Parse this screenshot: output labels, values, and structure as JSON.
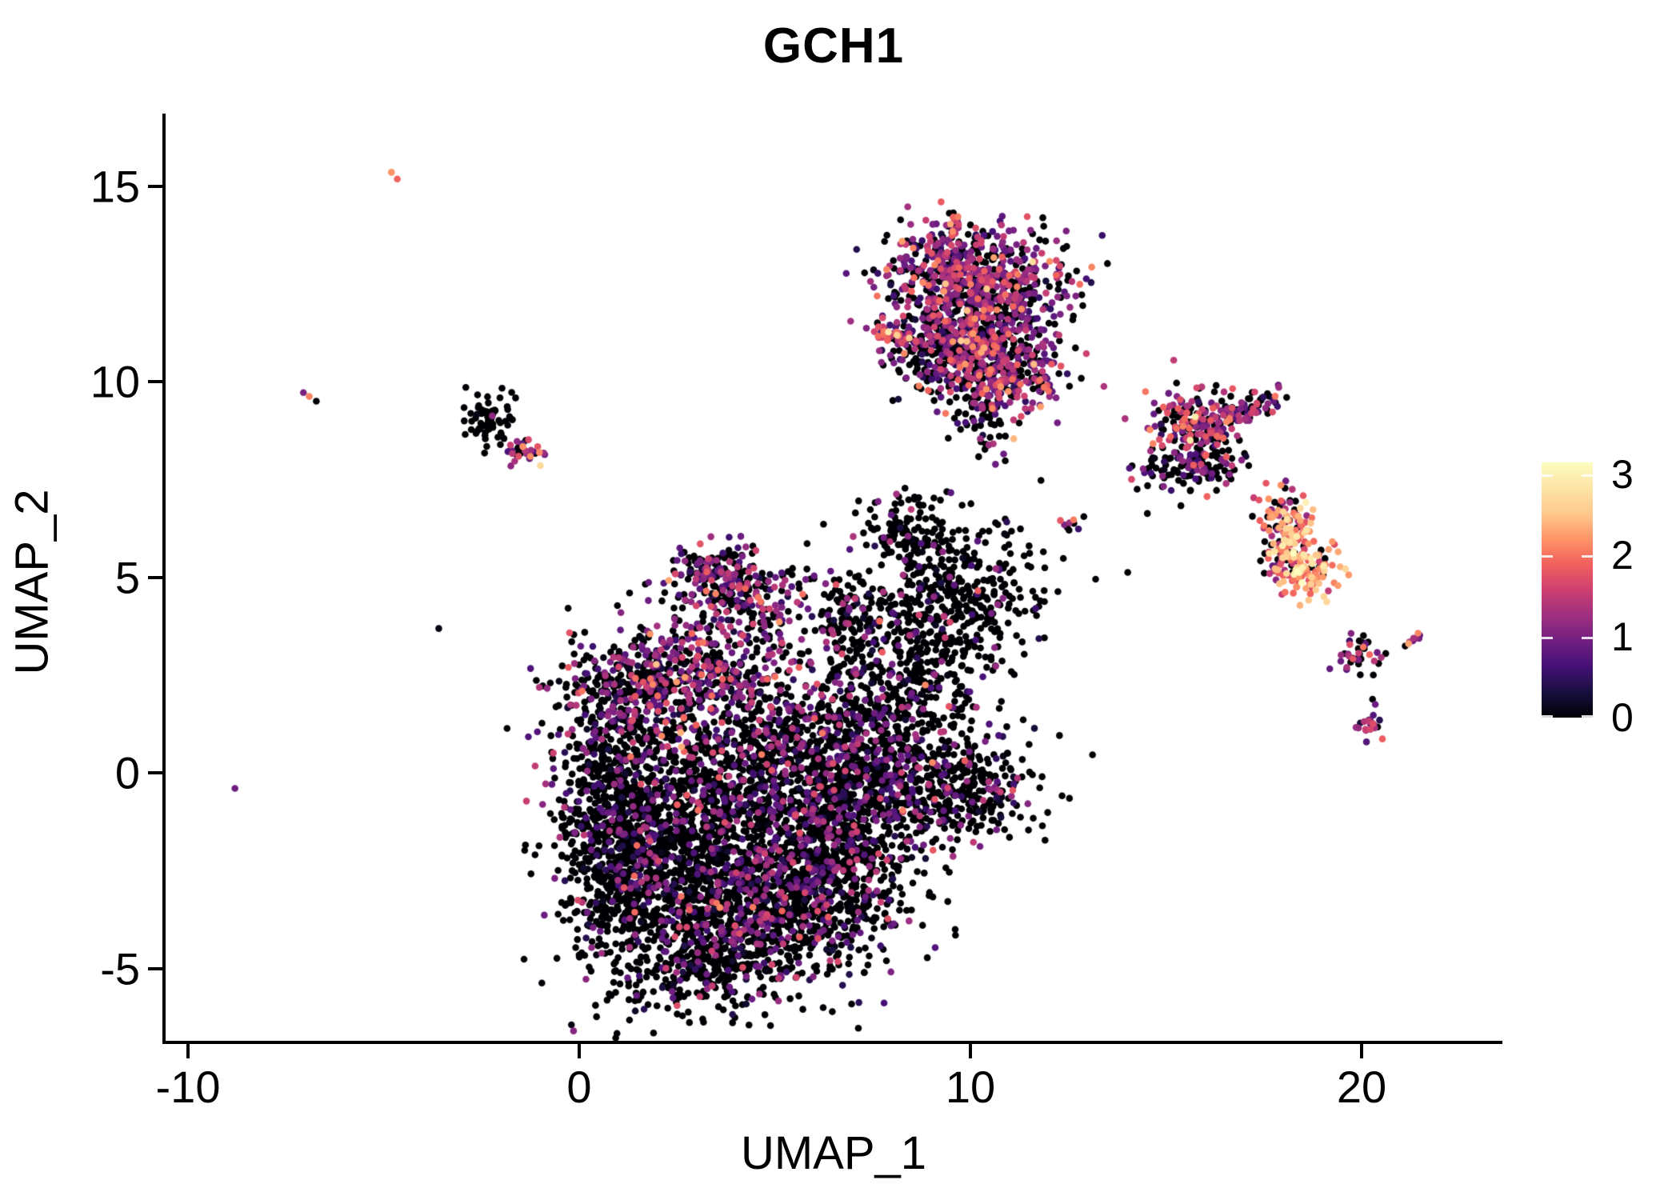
{
  "chart_data": {
    "type": "scatter",
    "title": "GCH1",
    "xlabel": "UMAP_1",
    "ylabel": "UMAP_2",
    "x_ticks": [
      {
        "v": -10,
        "label": "-10"
      },
      {
        "v": 0,
        "label": "0"
      },
      {
        "v": 10,
        "label": "10"
      },
      {
        "v": 20,
        "label": "20"
      }
    ],
    "y_ticks": [
      {
        "v": -5,
        "label": "-5"
      },
      {
        "v": 0,
        "label": "0"
      },
      {
        "v": 5,
        "label": "5"
      },
      {
        "v": 10,
        "label": "10"
      },
      {
        "v": 15,
        "label": "15"
      }
    ],
    "xlim": [
      -10.6,
      23.6
    ],
    "ylim": [
      -6.9,
      16.9
    ],
    "grid": false,
    "legend_position": "right",
    "colorbar": {
      "ticks": [
        0,
        1,
        2,
        3
      ],
      "vmax": 3.15,
      "label_values": [
        "0",
        "1",
        "2",
        "3"
      ]
    },
    "colormap_name": "magma",
    "colormap_stops": [
      [
        0.0,
        "#000004"
      ],
      [
        0.1,
        "#180F3E"
      ],
      [
        0.2,
        "#451077"
      ],
      [
        0.3,
        "#721F81"
      ],
      [
        0.4,
        "#9F2F7F"
      ],
      [
        0.5,
        "#CD4071"
      ],
      [
        0.6,
        "#F1605D"
      ],
      [
        0.7,
        "#FD9567"
      ],
      [
        0.8,
        "#FEC98D"
      ],
      [
        0.9,
        "#FDE4A6"
      ],
      [
        1.0,
        "#FCFDBF"
      ]
    ],
    "point_radius_px": 4.3,
    "clusters": [
      {
        "name": "main-blob-left-low",
        "shape": "gauss",
        "cx": 2.1,
        "cy": -2.3,
        "sx": 1.15,
        "sy": 1.5,
        "n": 850,
        "zero": 0.8,
        "mean": 0.8,
        "sd": 0.45
      },
      {
        "name": "main-blob-bottom",
        "shape": "gauss",
        "cx": 4.8,
        "cy": -3.3,
        "sx": 1.5,
        "sy": 1.1,
        "n": 950,
        "zero": 0.74,
        "mean": 0.85,
        "sd": 0.5
      },
      {
        "name": "main-blob-right-low",
        "shape": "gauss",
        "cx": 6.4,
        "cy": -1.9,
        "sx": 1.15,
        "sy": 1.3,
        "n": 650,
        "zero": 0.76,
        "mean": 0.8,
        "sd": 0.45
      },
      {
        "name": "main-blob-mid",
        "shape": "gauss",
        "cx": 4.0,
        "cy": -0.6,
        "sx": 1.9,
        "sy": 1.0,
        "n": 650,
        "zero": 0.72,
        "mean": 0.85,
        "sd": 0.5
      },
      {
        "name": "main-blob-left-edge",
        "shape": "gauss",
        "cx": 0.7,
        "cy": -1.7,
        "sx": 0.62,
        "sy": 1.5,
        "n": 420,
        "zero": 0.86,
        "mean": 0.7,
        "sd": 0.4
      },
      {
        "name": "main-blob-bottom-tip",
        "shape": "gauss",
        "cx": 3.1,
        "cy": -4.9,
        "sx": 1.05,
        "sy": 0.6,
        "n": 260,
        "zero": 0.78,
        "mean": 0.8,
        "sd": 0.45
      },
      {
        "name": "main-blob-upper-mid",
        "shape": "gauss",
        "cx": 5.6,
        "cy": 0.9,
        "sx": 1.5,
        "sy": 0.85,
        "n": 430,
        "zero": 0.68,
        "mean": 0.95,
        "sd": 0.5
      },
      {
        "name": "main-blob-purple-band",
        "shape": "gauss",
        "cx": 2.8,
        "cy": 2.6,
        "sx": 1.55,
        "sy": 0.6,
        "n": 520,
        "zero": 0.44,
        "mean": 1.05,
        "sd": 0.5
      },
      {
        "name": "main-blob-left-upper",
        "shape": "gauss",
        "cx": 1.2,
        "cy": 1.3,
        "sx": 0.95,
        "sy": 0.85,
        "n": 300,
        "zero": 0.72,
        "mean": 0.9,
        "sd": 0.5
      },
      {
        "name": "main-blob-top-lobe",
        "shape": "gauss",
        "cx": 4.0,
        "cy": 4.6,
        "sx": 1.0,
        "sy": 0.55,
        "n": 260,
        "zero": 0.55,
        "mean": 1.0,
        "sd": 0.5
      },
      {
        "name": "main-blob-top-arm",
        "shape": "gauss",
        "cx": 3.4,
        "cy": 5.25,
        "sx": 0.5,
        "sy": 0.28,
        "n": 70,
        "zero": 0.5,
        "mean": 1.0,
        "sd": 0.5
      },
      {
        "name": "main-blob-right-mid",
        "shape": "gauss",
        "cx": 7.4,
        "cy": 0.3,
        "sx": 1.0,
        "sy": 0.95,
        "n": 340,
        "zero": 0.76,
        "mean": 0.9,
        "sd": 0.5
      },
      {
        "name": "right-lobe-low",
        "shape": "gauss",
        "cx": 9.7,
        "cy": -0.3,
        "sx": 1.15,
        "sy": 0.68,
        "n": 380,
        "zero": 0.78,
        "mean": 0.9,
        "sd": 0.5
      },
      {
        "name": "hook-lower",
        "shape": "gauss",
        "cx": 8.6,
        "cy": 2.6,
        "sx": 0.95,
        "sy": 0.95,
        "n": 300,
        "zero": 0.86,
        "mean": 0.8,
        "sd": 0.45
      },
      {
        "name": "hook-upper",
        "shape": "gauss",
        "cx": 9.7,
        "cy": 4.6,
        "sx": 1.1,
        "sy": 0.9,
        "n": 360,
        "zero": 0.88,
        "mean": 0.8,
        "sd": 0.45
      },
      {
        "name": "hook-top-streak",
        "shape": "gauss",
        "cx": 8.3,
        "cy": 6.1,
        "sx": 0.6,
        "sy": 0.5,
        "n": 110,
        "zero": 0.85,
        "mean": 0.9,
        "sd": 0.5
      },
      {
        "name": "hook-neck",
        "shape": "gauss",
        "cx": 6.9,
        "cy": 3.9,
        "sx": 0.55,
        "sy": 0.8,
        "n": 130,
        "zero": 0.8,
        "mean": 0.9,
        "sd": 0.5
      },
      {
        "name": "top-cluster-left",
        "shape": "gauss",
        "cx": 9.25,
        "cy": 12.9,
        "sx": 0.85,
        "sy": 0.55,
        "n": 250,
        "zero": 0.3,
        "mean": 1.15,
        "sd": 0.5
      },
      {
        "name": "top-cluster-main",
        "shape": "gauss",
        "cx": 10.6,
        "cy": 12.35,
        "sx": 1.0,
        "sy": 0.8,
        "n": 450,
        "zero": 0.36,
        "mean": 1.1,
        "sd": 0.5
      },
      {
        "name": "top-cluster-lower",
        "shape": "gauss",
        "cx": 10.0,
        "cy": 11.05,
        "sx": 1.05,
        "sy": 0.7,
        "n": 400,
        "zero": 0.46,
        "mean": 1.0,
        "sd": 0.5
      },
      {
        "name": "top-cluster-bottom-dense",
        "shape": "gauss",
        "cx": 10.9,
        "cy": 10.2,
        "sx": 0.7,
        "sy": 0.5,
        "n": 240,
        "zero": 0.3,
        "mean": 1.25,
        "sd": 0.55
      },
      {
        "name": "top-cluster-tail",
        "shape": "gauss",
        "cx": 10.35,
        "cy": 9.2,
        "sx": 0.33,
        "sy": 0.55,
        "n": 80,
        "zero": 0.72,
        "mean": 0.9,
        "sd": 0.5
      },
      {
        "name": "top-cluster-left-scatter",
        "shape": "gauss",
        "cx": 8.95,
        "cy": 10.6,
        "sx": 0.5,
        "sy": 0.5,
        "n": 70,
        "zero": 0.6,
        "mean": 1.0,
        "sd": 0.5
      },
      {
        "name": "top-cluster-left-arm",
        "shape": "line",
        "x1": 7.55,
        "y1": 11.32,
        "x2": 8.55,
        "y2": 11.0,
        "jitter": 0.09,
        "n": 45,
        "zero": 0.22,
        "mean": 1.5,
        "sd": 0.5
      },
      {
        "name": "top-cluster-top-streak",
        "shape": "line",
        "x1": 9.5,
        "y1": 13.45,
        "x2": 9.68,
        "y2": 14.4,
        "jitter": 0.07,
        "n": 28,
        "zero": 0.3,
        "mean": 1.4,
        "sd": 0.5
      },
      {
        "name": "right-cluster-head",
        "shape": "gauss",
        "cx": 15.6,
        "cy": 8.95,
        "sx": 0.55,
        "sy": 0.45,
        "n": 150,
        "zero": 0.3,
        "mean": 1.35,
        "sd": 0.55
      },
      {
        "name": "right-cluster-streak",
        "shape": "line",
        "x1": 16.15,
        "y1": 8.95,
        "x2": 17.85,
        "y2": 9.55,
        "jitter": 0.14,
        "n": 80,
        "zero": 0.38,
        "mean": 1.3,
        "sd": 0.55
      },
      {
        "name": "right-cluster-dark-mass",
        "shape": "gauss",
        "cx": 15.95,
        "cy": 8.05,
        "sx": 0.45,
        "sy": 0.42,
        "n": 120,
        "zero": 0.62,
        "mean": 0.9,
        "sd": 0.5
      },
      {
        "name": "right-cluster-left-tail",
        "shape": "gauss",
        "cx": 14.85,
        "cy": 7.6,
        "sx": 0.5,
        "sy": 0.3,
        "n": 40,
        "zero": 0.75,
        "mean": 0.9,
        "sd": 0.5
      },
      {
        "name": "bright-cluster-top",
        "shape": "gauss",
        "cx": 17.85,
        "cy": 6.6,
        "sx": 0.32,
        "sy": 0.28,
        "n": 55,
        "zero": 0.22,
        "mean": 1.6,
        "sd": 0.5
      },
      {
        "name": "bright-cluster-upper",
        "shape": "gauss",
        "cx": 18.2,
        "cy": 6.0,
        "sx": 0.28,
        "sy": 0.42,
        "n": 75,
        "zero": 0.1,
        "mean": 2.2,
        "sd": 0.45
      },
      {
        "name": "bright-cluster-lower",
        "shape": "gauss",
        "cx": 18.6,
        "cy": 5.15,
        "sx": 0.42,
        "sy": 0.38,
        "n": 105,
        "zero": 0.07,
        "mean": 2.3,
        "sd": 0.45
      },
      {
        "name": "bright-cluster-left",
        "shape": "gauss",
        "cx": 18.0,
        "cy": 5.35,
        "sx": 0.3,
        "sy": 0.28,
        "n": 45,
        "zero": 0.3,
        "mean": 1.5,
        "sd": 0.5
      },
      {
        "name": "y-cluster-arms",
        "shape": "gauss",
        "cx": 19.95,
        "cy": 3.0,
        "sx": 0.28,
        "sy": 0.22,
        "n": 36,
        "zero": 0.32,
        "mean": 1.1,
        "sd": 0.5
      },
      {
        "name": "y-cluster-bottom-blob",
        "shape": "gauss",
        "cx": 20.2,
        "cy": 1.2,
        "sx": 0.18,
        "sy": 0.18,
        "n": 22,
        "zero": 0.25,
        "mean": 1.2,
        "sd": 0.5
      },
      {
        "name": "far-right-streak",
        "shape": "line",
        "x1": 21.05,
        "y1": 3.15,
        "x2": 21.5,
        "y2": 3.55,
        "jitter": 0.05,
        "n": 10,
        "zero": 0.15,
        "mean": 1.3,
        "sd": 0.5
      },
      {
        "name": "left-mid-cluster-dark",
        "shape": "gauss",
        "cx": -2.35,
        "cy": 9.0,
        "sx": 0.38,
        "sy": 0.3,
        "n": 70,
        "zero": 0.93,
        "mean": 0.7,
        "sd": 0.4
      },
      {
        "name": "left-mid-cluster-colored-tip",
        "shape": "gauss",
        "cx": -1.35,
        "cy": 8.2,
        "sx": 0.3,
        "sy": 0.18,
        "n": 30,
        "zero": 0.25,
        "mean": 1.3,
        "sd": 0.5
      },
      {
        "name": "tiny-mid-streak",
        "shape": "gauss",
        "cx": 12.55,
        "cy": 6.35,
        "sx": 0.22,
        "sy": 0.1,
        "n": 7,
        "zero": 0.65,
        "mean": 1.5,
        "sd": 0.6
      },
      {
        "name": "isolated-points",
        "shape": "points",
        "pts": [
          [
            -8.8,
            -0.4,
            0.9
          ],
          [
            -7.05,
            9.72,
            1.0
          ],
          [
            -6.9,
            9.62,
            2.1
          ],
          [
            -6.72,
            9.5,
            0
          ],
          [
            -4.8,
            15.35,
            2.2
          ],
          [
            -4.65,
            15.18,
            1.9
          ],
          [
            19.15,
            4.65,
            1.5
          ],
          [
            19.7,
            3.28,
            1.7
          ],
          [
            20.3,
            2.5,
            0
          ],
          [
            20.28,
            1.88,
            0
          ],
          [
            20.35,
            1.75,
            0.9
          ],
          [
            21.2,
            3.3,
            2.3
          ],
          [
            15.75,
            9.1,
            2.9
          ],
          [
            11.5,
            5.8,
            0
          ],
          [
            12.3,
            6.45,
            1.8
          ],
          [
            12.9,
            6.55,
            0
          ]
        ]
      }
    ]
  }
}
